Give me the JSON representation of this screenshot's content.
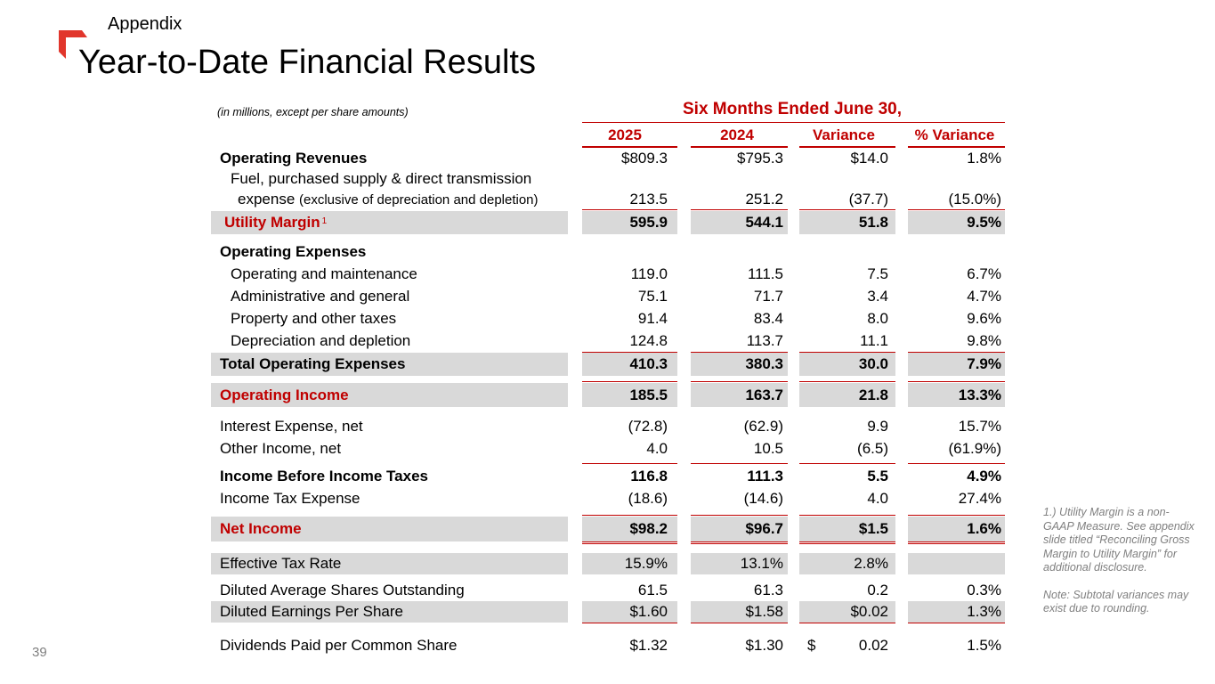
{
  "slide": {
    "section": "Appendix",
    "title": "Year-to-Date Financial Results",
    "page_number": "39",
    "accent_color": "#c00000",
    "band_color": "#d9d9d9"
  },
  "table": {
    "unit_note": "(in millions, except per share amounts)",
    "period_header": "Six Months Ended June 30,",
    "columns": [
      "2025",
      "2024",
      "Variance",
      "% Variance"
    ],
    "rows": [
      {
        "label": "Operating Revenues",
        "values": [
          "$809.3",
          "$795.3",
          "$14.0",
          "1.8%"
        ]
      },
      {
        "label": "Fuel, purchased supply & direct transmission"
      },
      {
        "label": "expense",
        "label_note": "(exclusive of depreciation and depletion)",
        "values": [
          "213.5",
          "251.2",
          "(37.7)",
          "(15.0%)"
        ]
      },
      {
        "label": "Utility Margin",
        "footnote_marker": "1",
        "values": [
          "595.9",
          "544.1",
          "51.8",
          "9.5%"
        ]
      },
      {
        "label": "Operating Expenses"
      },
      {
        "label": "Operating and maintenance",
        "values": [
          "119.0",
          "111.5",
          "7.5",
          "6.7%"
        ]
      },
      {
        "label": "Administrative and general",
        "values": [
          "75.1",
          "71.7",
          "3.4",
          "4.7%"
        ]
      },
      {
        "label": "Property and other taxes",
        "values": [
          "91.4",
          "83.4",
          "8.0",
          "9.6%"
        ]
      },
      {
        "label": "Depreciation and depletion",
        "values": [
          "124.8",
          "113.7",
          "11.1",
          "9.8%"
        ]
      },
      {
        "label": "Total Operating Expenses",
        "values": [
          "410.3",
          "380.3",
          "30.0",
          "7.9%"
        ]
      },
      {
        "label": "Operating Income",
        "values": [
          "185.5",
          "163.7",
          "21.8",
          "13.3%"
        ]
      },
      {
        "label": "Interest Expense, net",
        "values": [
          "(72.8)",
          "(62.9)",
          "9.9",
          "15.7%"
        ]
      },
      {
        "label": "Other Income, net",
        "values": [
          "4.0",
          "10.5",
          "(6.5)",
          "(61.9%)"
        ]
      },
      {
        "label": "Income Before Income Taxes",
        "values": [
          "116.8",
          "111.3",
          "5.5",
          "4.9%"
        ]
      },
      {
        "label": "Income Tax Expense",
        "values": [
          "(18.6)",
          "(14.6)",
          "4.0",
          "27.4%"
        ]
      },
      {
        "label": "Net Income",
        "values": [
          "$98.2",
          "$96.7",
          "$1.5",
          "1.6%"
        ]
      },
      {
        "label": "Effective Tax Rate",
        "values": [
          "15.9%",
          "13.1%",
          "2.8%",
          ""
        ]
      },
      {
        "label": "Diluted Average Shares Outstanding",
        "values": [
          "61.5",
          "61.3",
          "0.2",
          "0.3%"
        ]
      },
      {
        "label": "Diluted Earnings Per Share",
        "values": [
          "$1.60",
          "$1.58",
          "$0.02",
          "1.3%"
        ]
      },
      {
        "label": "Dividends Paid per Common Share",
        "dollar_sign": "$",
        "values": [
          "$1.32",
          "$1.30",
          "0.02",
          "1.5%"
        ]
      }
    ]
  },
  "footnotes": {
    "note1": "1.) Utility Margin is a non-GAAP Measure. See appendix slide titled “Reconciling Gross Margin to Utility Margin” for additional disclosure.",
    "note2": "Note: Subtotal variances may exist due to rounding."
  }
}
